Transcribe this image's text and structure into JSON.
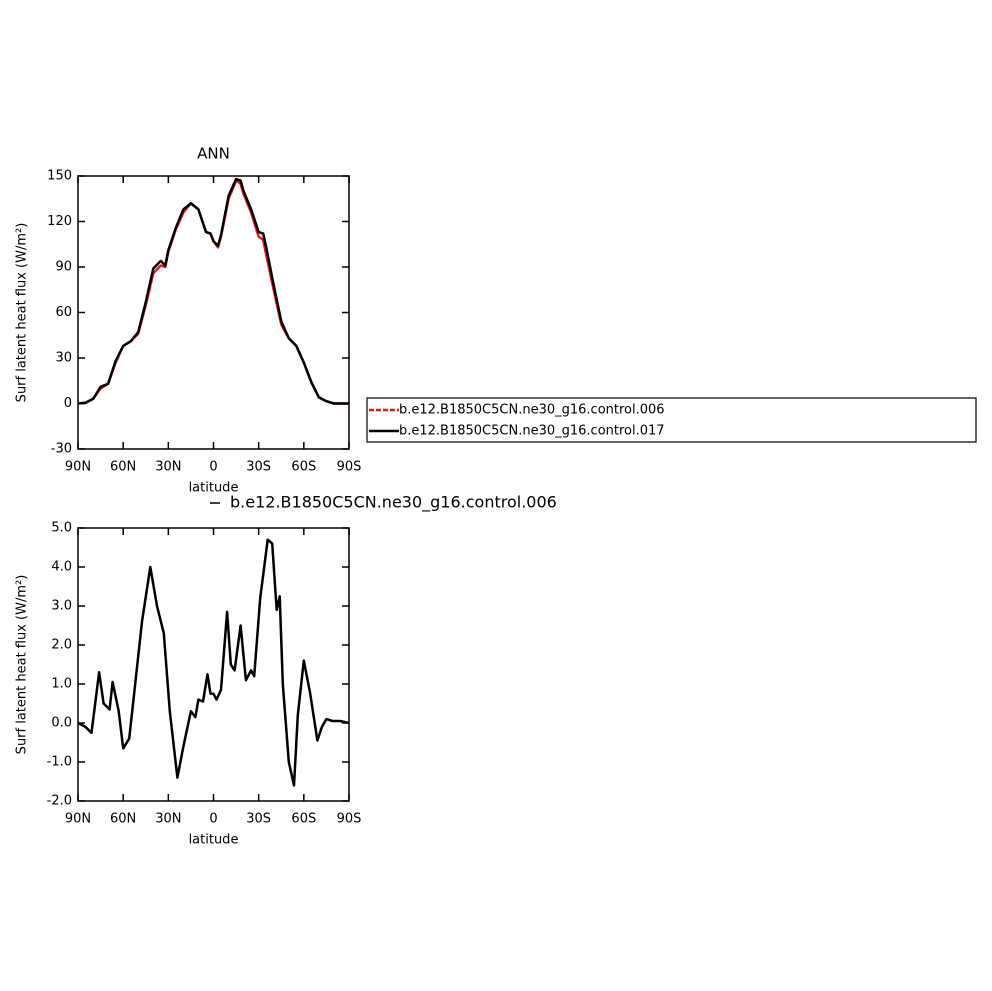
{
  "chart_data": [
    {
      "type": "line",
      "title": "ANN",
      "xlabel": "latitude",
      "ylabel": "Surf latent heat flux (W/m²)",
      "x": [
        90,
        85,
        80,
        75,
        70,
        65,
        60,
        55,
        50,
        45,
        40,
        35,
        32,
        30,
        25,
        20,
        15,
        10,
        5,
        2,
        0,
        -3,
        -5,
        -10,
        -15,
        -18,
        -20,
        -25,
        -30,
        -33,
        -35,
        -40,
        -45,
        -50,
        -55,
        -60,
        -65,
        -70,
        -75,
        -80,
        -85,
        -90
      ],
      "series": [
        {
          "name": "b.e12.B1850C5CN.ne30_g16.control.006",
          "color": "#e41a1c",
          "dashed": true,
          "values": [
            0,
            0.5,
            3,
            10,
            13,
            27,
            38,
            41,
            46,
            65,
            86,
            91,
            90,
            100,
            115,
            126,
            132,
            128,
            113,
            112,
            107,
            103,
            110,
            135,
            147,
            145,
            138,
            126,
            110,
            108,
            98,
            75,
            52,
            43,
            38,
            27,
            14,
            4,
            1.5,
            0,
            0,
            0
          ]
        },
        {
          "name": "b.e12.B1850C5CN.ne30_g16.control.017",
          "color": "#000000",
          "dashed": false,
          "values": [
            0,
            0.5,
            3,
            11,
            13,
            28,
            38,
            41,
            47,
            67,
            89,
            94,
            91,
            101,
            116,
            128,
            132,
            128,
            113,
            112,
            107,
            104,
            111,
            137,
            148,
            147,
            140,
            128,
            113,
            112,
            103,
            78,
            54,
            43,
            38,
            27,
            14,
            4,
            1.5,
            0,
            0,
            0
          ]
        }
      ],
      "xlim": [
        90,
        -90
      ],
      "xticks": [
        {
          "value": 90,
          "label": "90N"
        },
        {
          "value": 60,
          "label": "60N"
        },
        {
          "value": 30,
          "label": "30N"
        },
        0,
        {
          "value": -30,
          "label": "30S"
        },
        {
          "value": -60,
          "label": "60S"
        },
        {
          "value": -90,
          "label": "90S"
        }
      ],
      "ylim": [
        -30,
        150
      ],
      "yticks": [
        -30,
        0,
        30,
        60,
        90,
        120,
        150
      ],
      "legend": "right"
    },
    {
      "type": "line",
      "xlabel": "latitude",
      "ylabel": "Surf latent heat flux (W/m²)",
      "x": [
        90,
        85,
        81,
        76,
        73,
        69,
        67,
        63,
        60,
        56,
        52,
        47.5,
        42,
        37.5,
        33,
        29,
        24,
        20,
        15,
        12,
        10,
        7,
        4,
        2,
        0,
        -2,
        -5,
        -9,
        -11.5,
        -14,
        -18,
        -21.5,
        -25,
        -27,
        -31,
        -36,
        -39,
        -42,
        -44,
        -46,
        -50,
        -53.5,
        -56,
        -60,
        -64,
        -69,
        -72,
        -75,
        -79,
        -84,
        -90
      ],
      "series": [
        {
          "name": "b.e12.B1850C5CN.ne30_g16.control.006",
          "color": "#000000",
          "dashed": false,
          "values": [
            0.0,
            -0.1,
            -0.25,
            1.3,
            0.5,
            0.35,
            1.05,
            0.3,
            -0.65,
            -0.4,
            1.0,
            2.6,
            4.0,
            3.0,
            2.3,
            0.3,
            -1.4,
            -0.6,
            0.3,
            0.15,
            0.6,
            0.55,
            1.25,
            0.75,
            0.75,
            0.6,
            0.85,
            2.85,
            1.5,
            1.35,
            2.5,
            1.1,
            1.35,
            1.2,
            3.2,
            4.7,
            4.6,
            2.9,
            3.25,
            1.0,
            -1.0,
            -1.6,
            0.2,
            1.6,
            0.8,
            -0.45,
            -0.1,
            0.1,
            0.05,
            0.05,
            0.0
          ]
        }
      ],
      "xlim": [
        90,
        -90
      ],
      "xticks": [
        {
          "value": 90,
          "label": "90N"
        },
        {
          "value": 60,
          "label": "60N"
        },
        {
          "value": 30,
          "label": "30N"
        },
        0,
        {
          "value": -30,
          "label": "30S"
        },
        {
          "value": -60,
          "label": "60S"
        },
        {
          "value": -90,
          "label": "90S"
        }
      ],
      "ylim": [
        -2,
        5
      ],
      "yticks": [
        {
          "value": -2,
          "label": "-2.0"
        },
        {
          "value": -1,
          "label": "-1.0"
        },
        {
          "value": 0,
          "label": "0.0"
        },
        {
          "value": 1,
          "label": "1.0"
        },
        {
          "value": 2,
          "label": "2.0"
        },
        {
          "value": 3,
          "label": "3.0"
        },
        {
          "value": 4,
          "label": "4.0"
        },
        {
          "value": 5,
          "label": "5.0"
        }
      ],
      "legend": "top"
    }
  ]
}
